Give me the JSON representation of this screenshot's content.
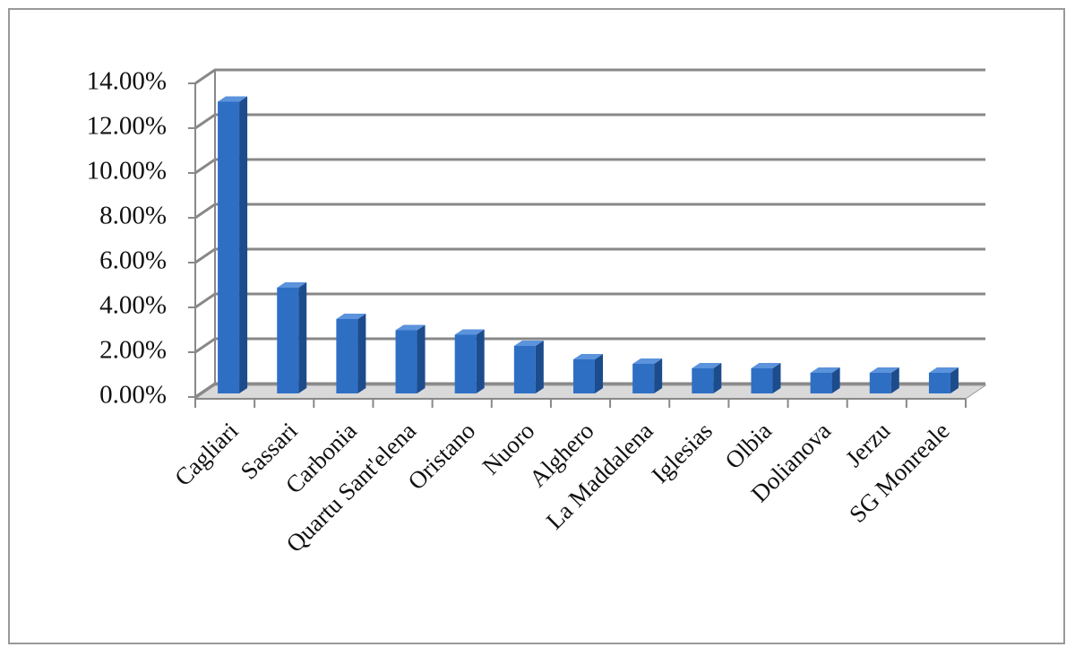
{
  "chart_data": {
    "type": "bar3d",
    "categories": [
      "Cagliari",
      "Sassari",
      "Carbonia",
      "Quartu  Sant'elena",
      "Oristano",
      "Nuoro",
      "Alghero",
      "La Maddalena",
      "Iglesias",
      "Olbia",
      "Dolianova",
      "Jerzu",
      "SG Monreale"
    ],
    "values": [
      13.1,
      4.8,
      3.4,
      2.9,
      2.7,
      2.2,
      1.6,
      1.4,
      1.2,
      1.2,
      1.0,
      1.0,
      1.0
    ],
    "color": "#2e6fc4",
    "ylim": [
      0,
      14
    ],
    "yticks": [
      {
        "value": 0,
        "label": "0.00%"
      },
      {
        "value": 2,
        "label": "2.00%"
      },
      {
        "value": 4,
        "label": "4.00%"
      },
      {
        "value": 6,
        "label": "6.00%"
      },
      {
        "value": 8,
        "label": "8.00%"
      },
      {
        "value": 10,
        "label": "10.00%"
      },
      {
        "value": 12,
        "label": "12.00%"
      },
      {
        "value": 14,
        "label": "14.00%"
      }
    ],
    "grid": true
  }
}
